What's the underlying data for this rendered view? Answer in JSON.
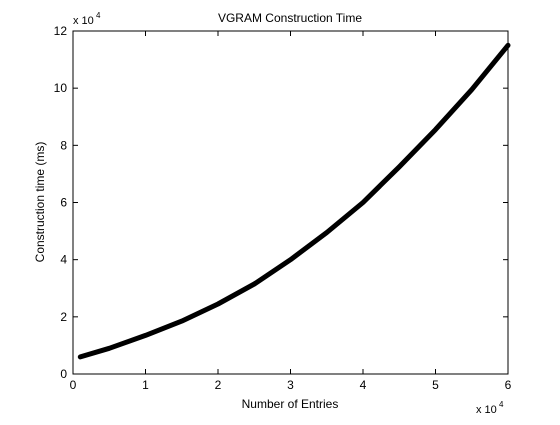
{
  "chart_data": {
    "type": "line",
    "title": "VGRAM Construction Time",
    "xlabel": "Number of Entries",
    "ylabel": "Construction time (ms)",
    "x_exponent_label": "x 10",
    "x_exponent_power": "4",
    "y_exponent_label": "x 10",
    "y_exponent_power": "4",
    "x_ticks": [
      0,
      10000,
      20000,
      30000,
      40000,
      50000,
      60000
    ],
    "x_tick_labels": [
      "0",
      "1",
      "2",
      "3",
      "4",
      "5",
      "6"
    ],
    "y_ticks": [
      0,
      20000,
      40000,
      60000,
      80000,
      100000,
      120000
    ],
    "y_tick_labels": [
      "0",
      "2",
      "4",
      "6",
      "8",
      "10",
      "12"
    ],
    "xlim": [
      0,
      60000
    ],
    "ylim": [
      0,
      120000
    ],
    "grid": false,
    "line_color": "#000000",
    "series": [
      {
        "x": [
          1000,
          5000,
          10000,
          15000,
          20000,
          25000,
          30000,
          35000,
          40000,
          45000,
          50000,
          55000,
          60000
        ],
        "y": [
          6000,
          9000,
          13500,
          18500,
          24500,
          31500,
          40000,
          49500,
          60000,
          72500,
          85500,
          99500,
          115000
        ]
      }
    ]
  }
}
